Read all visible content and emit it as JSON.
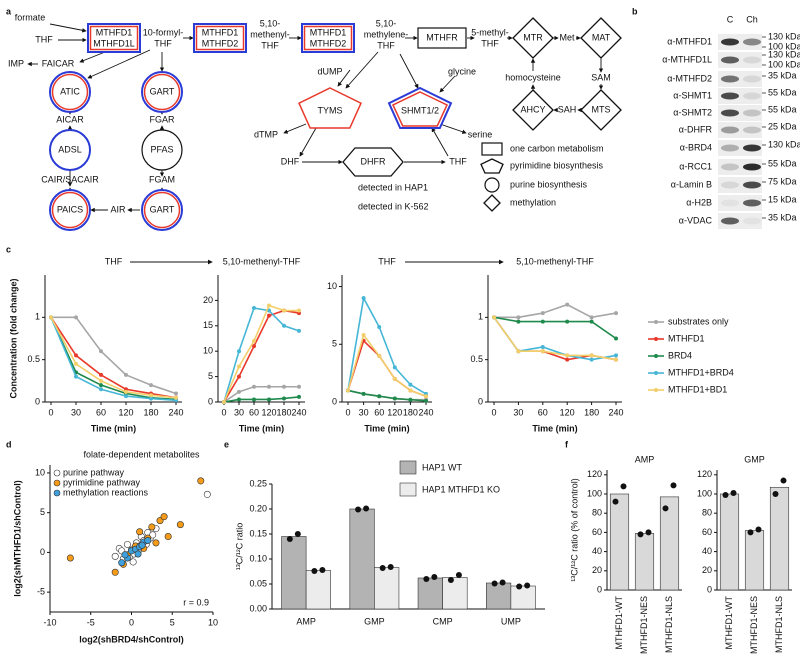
{
  "panel_labels": [
    "a",
    "b",
    "c",
    "d",
    "e",
    "f"
  ],
  "pathway": {
    "enzymes": [
      "MTHFD1",
      "MTHFD1L",
      "MTHFD1",
      "MTHFD2",
      "MTHFD1",
      "MTHFD2",
      "MTHFR",
      "MTR",
      "MAT",
      "AHCY",
      "MTS",
      "TYMS",
      "SHMT1/2",
      "DHFR",
      "ATIC",
      "ADSL",
      "PAICS",
      "GART",
      "PFAS",
      "GART"
    ],
    "metabolites": [
      "formate",
      "THF",
      "10-formyl-",
      "THF",
      "5,10-",
      "methenyl-",
      "THF",
      "5,10-",
      "methylene-",
      "THF",
      "5-methyl-",
      "THF",
      "Met",
      "homocysteine",
      "SAM",
      "SAH",
      "dUMP",
      "glycine",
      "dTMP",
      "serine",
      "DHF",
      "THF",
      "IMP",
      "FAICAR",
      "AICAR",
      "CAIR/SACAIR",
      "FGAR",
      "FGAM",
      "AIR"
    ],
    "legend": [
      "one carbon metabolism",
      "pyrimidine biosynthesis",
      "purine biosynthesis",
      "methylation"
    ],
    "detection": [
      "detected in HAP1",
      "detected in K-562"
    ]
  },
  "blot": {
    "columns": [
      "C",
      "Ch"
    ],
    "rows": [
      {
        "antibody": "α-MTHFD1",
        "markers": [
          "130 kDa",
          "100 kDa"
        ]
      },
      {
        "antibody": "α-MTHFD1L",
        "markers": [
          "130 kDa",
          "100 kDa"
        ]
      },
      {
        "antibody": "α-MTHFD2",
        "markers": [
          "35 kDa"
        ]
      },
      {
        "antibody": "α-SHMT1",
        "markers": [
          "55 kDa"
        ]
      },
      {
        "antibody": "α-SHMT2",
        "markers": [
          "55 kDa"
        ]
      },
      {
        "antibody": "α-DHFR",
        "markers": [
          "25 kDa"
        ]
      },
      {
        "antibody": "α-BRD4",
        "markers": [
          "130 kDa"
        ]
      },
      {
        "antibody": "α-RCC1",
        "markers": [
          "55 kDa"
        ]
      },
      {
        "antibody": "α-Lamin B",
        "markers": [
          "75 kDa"
        ]
      },
      {
        "antibody": "α-H2B",
        "markers": [
          "15 kDa"
        ]
      },
      {
        "antibody": "α-VDAC",
        "markers": [
          "35 kDa"
        ]
      }
    ]
  },
  "chart_data": [
    {
      "type": "line",
      "title": "THF",
      "categories": [
        "0",
        "30",
        "60",
        "120",
        "180",
        "240"
      ],
      "x_label": "Time (min)",
      "y_label": "Concentration (fold change)",
      "ylim": [
        0,
        1.5
      ],
      "yticks": [
        0,
        0.5,
        1
      ],
      "series": [
        {
          "color": "#a6a6a6",
          "values": [
            1,
            1,
            0.6,
            0.32,
            0.2,
            0.1
          ]
        },
        {
          "color": "#e8392b",
          "values": [
            1,
            0.55,
            0.32,
            0.15,
            0.1,
            0.05
          ]
        },
        {
          "color": "#1f8a4c",
          "values": [
            1,
            0.35,
            0.2,
            0.1,
            0.05,
            0.03
          ]
        },
        {
          "color": "#45b6d6",
          "values": [
            1,
            0.3,
            0.15,
            0.07,
            0.04,
            0.02
          ]
        },
        {
          "color": "#f3cf6a",
          "values": [
            1,
            0.45,
            0.25,
            0.12,
            0.08,
            0.05
          ]
        }
      ]
    },
    {
      "type": "line",
      "title": "5,10-methenyl-THF",
      "categories": [
        "0",
        "30",
        "60",
        "120",
        "180",
        "240"
      ],
      "x_label": "Time (min)",
      "ylim": [
        0,
        25
      ],
      "yticks": [
        0,
        5,
        10,
        15,
        20
      ],
      "series": [
        {
          "color": "#a6a6a6",
          "values": [
            0,
            2,
            3,
            3,
            3,
            3
          ]
        },
        {
          "color": "#e8392b",
          "values": [
            0,
            5,
            11,
            17,
            18,
            17.5
          ]
        },
        {
          "color": "#1f8a4c",
          "values": [
            0,
            0.5,
            0.5,
            0.5,
            0.7,
            1
          ]
        },
        {
          "color": "#45b6d6",
          "values": [
            0,
            10,
            18.5,
            18,
            15,
            14
          ]
        },
        {
          "color": "#f3cf6a",
          "values": [
            0,
            7,
            12,
            19,
            18,
            18
          ]
        }
      ]
    },
    {
      "type": "line",
      "title": "THF",
      "categories": [
        "0",
        "30",
        "60",
        "120",
        "180",
        "240"
      ],
      "x_label": "Time (min)",
      "ylim": [
        0,
        11
      ],
      "yticks": [
        0,
        5,
        10
      ],
      "series": [
        {
          "color": "#a6a6a6",
          "values": [
            1,
            0.7,
            0.5,
            0.3,
            0.2,
            0.2
          ]
        },
        {
          "color": "#e8392b",
          "values": [
            1,
            5.3,
            4,
            2,
            1,
            0.5
          ]
        },
        {
          "color": "#1f8a4c",
          "values": [
            1,
            0.7,
            0.5,
            0.3,
            0.2,
            0.1
          ]
        },
        {
          "color": "#45b6d6",
          "values": [
            1,
            9,
            6.5,
            3,
            1.5,
            0.7
          ]
        },
        {
          "color": "#f3cf6a",
          "values": [
            1,
            5.8,
            4,
            2,
            1,
            0.5
          ]
        }
      ]
    },
    {
      "type": "line",
      "title": "5,10-methenyl-THF",
      "categories": [
        "0",
        "30",
        "60",
        "120",
        "180",
        "240"
      ],
      "x_label": "Time (min)",
      "ylim": [
        0,
        1.5
      ],
      "yticks": [
        0,
        0.5,
        1
      ],
      "legend": "right",
      "series": [
        {
          "name": "substrates only",
          "color": "#a6a6a6",
          "values": [
            1,
            1,
            1.05,
            1.15,
            1,
            1.05
          ]
        },
        {
          "name": "MTHFD1",
          "color": "#e8392b",
          "values": [
            1,
            0.6,
            0.6,
            0.5,
            0.55,
            0.5
          ]
        },
        {
          "name": "BRD4",
          "color": "#1f8a4c",
          "values": [
            1,
            0.95,
            0.95,
            0.95,
            0.95,
            0.75
          ]
        },
        {
          "name": "MTHFD1+BRD4",
          "color": "#45b6d6",
          "values": [
            1,
            0.6,
            0.65,
            0.55,
            0.5,
            0.55
          ]
        },
        {
          "name": "MTHFD1+BD1",
          "color": "#f3cf6a",
          "values": [
            1,
            0.6,
            0.6,
            0.55,
            0.55,
            0.5
          ]
        }
      ]
    },
    {
      "type": "scatter",
      "title": "folate-dependent metabolites",
      "x_label": "log2(shBRD4/shControl)",
      "y_label": "log2(shMTHFD1/shControl)",
      "xlim": [
        -10,
        10
      ],
      "xticks": [
        -10,
        -5,
        0,
        5,
        10
      ],
      "ylim": [
        -7.5,
        11
      ],
      "yticks": [
        -5,
        0,
        5,
        10
      ],
      "annotation": "r = 0.9",
      "legend": "upper left",
      "series": [
        {
          "name": "purine pathway",
          "color": "#ffffff",
          "x": [
            9.3,
            -2,
            -1.5,
            -1,
            -0.5,
            0,
            0.3,
            0.6,
            1,
            1.2,
            1.5,
            2,
            2.3,
            2.6,
            3,
            -0.3,
            0.8,
            1.8,
            -1.2,
            0.2
          ],
          "y": [
            7.3,
            -0.5,
            0.5,
            -0.8,
            1,
            0.3,
            -0.2,
            1.2,
            0.8,
            2,
            1.5,
            2.5,
            1.8,
            2.2,
            3,
            -0.6,
            0.1,
            1,
            0.2,
            -1.2
          ]
        },
        {
          "name": "pyrimidine pathway",
          "color": "#f59b1a",
          "x": [
            -7.5,
            8.5,
            6,
            4.5,
            3.5,
            3,
            2.5,
            2,
            1.5,
            -2,
            -1,
            0.5,
            1,
            4,
            -0.5
          ],
          "y": [
            -0.7,
            9,
            3.5,
            2,
            4,
            1.2,
            3.2,
            1.8,
            0.5,
            -2.5,
            -1.5,
            0.8,
            2.6,
            4.5,
            -0.3
          ]
        },
        {
          "name": "methylation reactions",
          "color": "#3fa0dc",
          "x": [
            -1.2,
            -0.5,
            0,
            0.5,
            1,
            1.5,
            2,
            0.8,
            -0.8,
            1.3
          ],
          "y": [
            -1.3,
            -0.7,
            0.2,
            0.4,
            0.7,
            1.3,
            1.5,
            -0.2,
            -0.3,
            0.9
          ]
        }
      ]
    },
    {
      "type": "bar",
      "categories": [
        "AMP",
        "GMP",
        "CMP",
        "UMP"
      ],
      "y_label": "¹³C/¹²C ratio",
      "ylim": [
        0,
        0.25
      ],
      "yticks": [
        {
          "value": 0,
          "label": "0.00"
        },
        {
          "value": 0.05,
          "label": "0.05"
        },
        {
          "value": 0.1,
          "label": "0.10"
        },
        {
          "value": 0.15,
          "label": "0.15"
        },
        {
          "value": 0.2,
          "label": "0.20"
        },
        {
          "value": 0.25,
          "label": "0.25"
        }
      ],
      "legend": "upper right",
      "series": [
        {
          "name": "HAP1 WT",
          "color": "#b3b3b3",
          "values": [
            0.145,
            0.2,
            0.062,
            0.052
          ],
          "points": [
            [
              0.14,
              0.15
            ],
            [
              0.199,
              0.201
            ],
            [
              0.06,
              0.064
            ],
            [
              0.051,
              0.053
            ]
          ]
        },
        {
          "name": "HAP1 MTHFD1 KO",
          "color": "#ececec",
          "values": [
            0.077,
            0.083,
            0.063,
            0.046
          ],
          "points": [
            [
              0.076,
              0.078
            ],
            [
              0.082,
              0.084
            ],
            [
              0.058,
              0.068
            ],
            [
              0.045,
              0.047
            ]
          ]
        }
      ]
    },
    {
      "type": "bar",
      "title": "AMP",
      "categories": [
        "MTHFD1-WT",
        "MTHFD1-NES",
        "MTHFD1-NLS"
      ],
      "y_label": "¹³C/¹²C ratio (% of control)",
      "ylim": [
        0,
        125
      ],
      "yticks": [
        0,
        20,
        40,
        60,
        80,
        100,
        120
      ],
      "series": [
        {
          "color": "#d9d9d9",
          "values": [
            100,
            59,
            97
          ],
          "points": [
            [
              92,
              108
            ],
            [
              58,
              60
            ],
            [
              85,
              109
            ]
          ]
        }
      ]
    },
    {
      "type": "bar",
      "title": "GMP",
      "categories": [
        "MTHFD1-WT",
        "MTHFD1-NES",
        "MTHFD1-NLS"
      ],
      "ylim": [
        0,
        125
      ],
      "yticks": [
        0,
        20,
        40,
        60,
        80,
        100,
        120
      ],
      "series": [
        {
          "color": "#d9d9d9",
          "values": [
            100,
            62,
            107
          ],
          "points": [
            [
              99,
              101
            ],
            [
              60,
              63
            ],
            [
              100,
              114
            ]
          ]
        }
      ]
    }
  ]
}
